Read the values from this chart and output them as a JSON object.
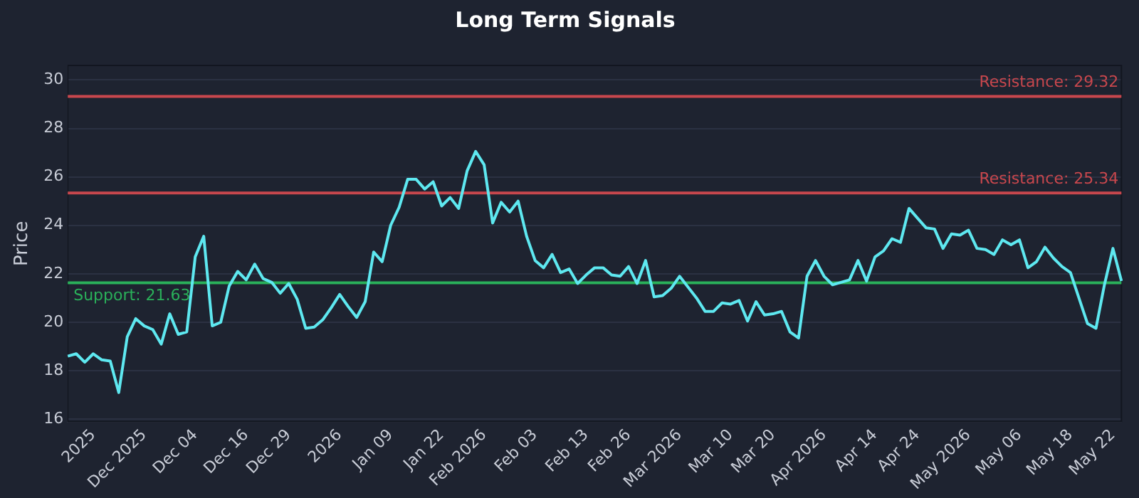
{
  "chart_data": {
    "type": "line",
    "title": "Long Term Signals",
    "ylabel": "Price",
    "categories": [
      null,
      null,
      null,
      "2025",
      null,
      null,
      null,
      null,
      null,
      "Dec 2025",
      null,
      null,
      null,
      null,
      null,
      "Dec 04",
      null,
      null,
      null,
      null,
      null,
      "Dec 16",
      null,
      null,
      null,
      null,
      "Dec 29",
      null,
      null,
      null,
      null,
      null,
      "2026",
      null,
      null,
      null,
      null,
      null,
      "Jan 09",
      null,
      null,
      null,
      null,
      null,
      "Jan 22",
      null,
      null,
      null,
      null,
      "Feb 2026",
      null,
      null,
      null,
      null,
      null,
      "Feb 03",
      null,
      null,
      null,
      null,
      null,
      "Feb 13",
      null,
      null,
      null,
      null,
      "Feb 26",
      null,
      null,
      null,
      null,
      null,
      "Mar 2026",
      null,
      null,
      null,
      null,
      null,
      "Mar 10",
      null,
      null,
      null,
      null,
      "Mar 20",
      null,
      null,
      null,
      null,
      null,
      "Apr 2026",
      null,
      null,
      null,
      null,
      null,
      "Apr 14",
      null,
      null,
      null,
      null,
      "Apr 24",
      null,
      null,
      null,
      null,
      null,
      "May 2026",
      null,
      null,
      null,
      null,
      null,
      "May 06",
      null,
      null,
      null,
      null,
      null,
      "May 18",
      null,
      null,
      null,
      null,
      "May 22",
      null
    ],
    "series": [
      {
        "color": "#5ee8f0",
        "values": [
          18.6,
          18.7,
          18.35,
          18.7,
          18.45,
          18.4,
          17.1,
          19.4,
          20.15,
          19.85,
          19.7,
          19.1,
          20.35,
          19.5,
          19.6,
          22.7,
          23.55,
          19.85,
          20.0,
          21.5,
          22.1,
          21.75,
          22.4,
          21.8,
          21.65,
          21.2,
          21.6,
          20.95,
          19.75,
          19.8,
          20.1,
          20.6,
          21.15,
          20.65,
          20.2,
          20.85,
          22.9,
          22.5,
          24.0,
          24.75,
          25.9,
          25.9,
          25.5,
          25.8,
          24.8,
          25.15,
          24.7,
          26.25,
          27.05,
          26.5,
          24.1,
          24.95,
          24.55,
          25.0,
          23.55,
          22.55,
          22.25,
          22.8,
          22.05,
          22.2,
          21.6,
          21.95,
          22.25,
          22.25,
          21.95,
          21.9,
          22.3,
          21.6,
          22.55,
          21.05,
          21.1,
          21.4,
          21.9,
          21.45,
          21.0,
          20.45,
          20.45,
          20.8,
          20.75,
          20.9,
          20.05,
          20.85,
          20.3,
          20.35,
          20.45,
          19.6,
          19.35,
          21.9,
          22.55,
          21.9,
          21.55,
          21.65,
          21.75,
          22.55,
          21.7,
          22.7,
          22.95,
          23.45,
          23.3,
          24.7,
          24.3,
          23.9,
          23.85,
          23.05,
          23.65,
          23.6,
          23.8,
          23.05,
          23.0,
          22.8,
          23.4,
          23.2,
          23.4,
          22.25,
          22.5,
          23.1,
          22.65,
          22.3,
          22.05,
          21.0,
          19.95,
          19.75,
          21.55,
          23.05,
          21.7
        ]
      }
    ],
    "ylim": [
      15.9,
      30.6
    ],
    "yticks": [
      16,
      18,
      20,
      22,
      24,
      26,
      28,
      30
    ],
    "grid": "y",
    "legend": false,
    "marker": "none",
    "line_style": "solid",
    "ref_lines": [
      {
        "axis": "y",
        "value": 29.32,
        "label": "Resistance: 29.32",
        "color": "#c8474d"
      },
      {
        "axis": "y",
        "value": 25.34,
        "label": "Resistance: 25.34",
        "color": "#c8474d"
      },
      {
        "axis": "y",
        "value": 21.63,
        "label": "Support: 21.63",
        "color": "#2ab05a"
      }
    ]
  }
}
